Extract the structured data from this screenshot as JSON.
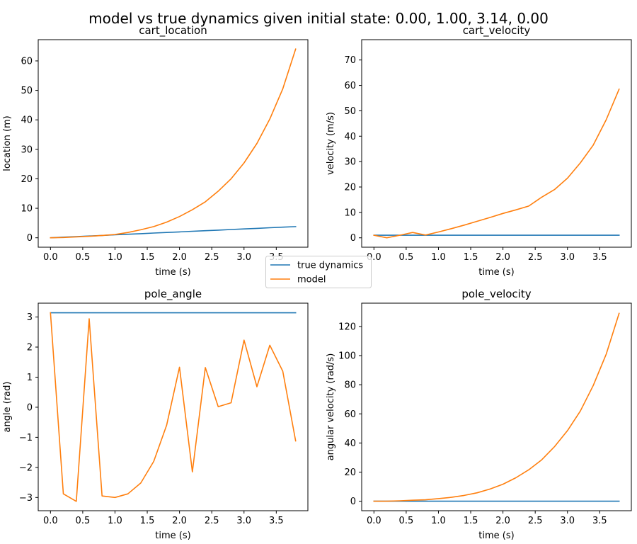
{
  "suptitle": "model vs true dynamics given initial state: 0.00, 1.00, 3.14, 0.00",
  "legend": {
    "placement": "center",
    "entries": [
      {
        "label": "true dynamics",
        "color": "#1f77b4"
      },
      {
        "label": "model",
        "color": "#ff7f0e"
      }
    ]
  },
  "chart_data": [
    {
      "type": "line",
      "title": "cart_location",
      "xlabel": "time (s)",
      "ylabel": "location (m)",
      "xlim": [
        -0.19,
        3.99
      ],
      "ylim": [
        -3.2,
        67.2
      ],
      "xticks": [
        0.0,
        0.5,
        1.0,
        1.5,
        2.0,
        2.5,
        3.0,
        3.5
      ],
      "xtick_labels": [
        "0.0",
        "0.5",
        "1.0",
        "1.5",
        "2.0",
        "2.5",
        "3.0",
        "3.5"
      ],
      "yticks": [
        0,
        10,
        20,
        30,
        40,
        50,
        60
      ],
      "ytick_labels": [
        "0",
        "10",
        "20",
        "30",
        "40",
        "50",
        "60"
      ],
      "x": [
        0.0,
        0.2,
        0.4,
        0.6,
        0.8,
        1.0,
        1.2,
        1.4,
        1.6,
        1.8,
        2.0,
        2.2,
        2.4,
        2.6,
        2.8,
        3.0,
        3.2,
        3.4,
        3.6,
        3.8
      ],
      "series": [
        {
          "name": "true dynamics",
          "color": "#1f77b4",
          "values": [
            0.0,
            0.2,
            0.4,
            0.6,
            0.8,
            1.0,
            1.2,
            1.4,
            1.6,
            1.8,
            2.0,
            2.2,
            2.4,
            2.6,
            2.8,
            3.0,
            3.2,
            3.4,
            3.6,
            3.8
          ]
        },
        {
          "name": "model",
          "color": "#ff7f0e",
          "values": [
            0.0,
            0.1,
            0.3,
            0.5,
            0.8,
            1.1,
            1.8,
            2.7,
            3.8,
            5.3,
            7.2,
            9.5,
            12.2,
            15.8,
            20.0,
            25.4,
            32.0,
            40.3,
            50.5,
            64.0
          ]
        }
      ]
    },
    {
      "type": "line",
      "title": "cart_velocity",
      "xlabel": "time (s)",
      "ylabel": "velocity (m/s)",
      "xlim": [
        -0.19,
        3.99
      ],
      "ylim": [
        -3.7,
        78.0
      ],
      "xticks": [
        0.0,
        0.5,
        1.0,
        1.5,
        2.0,
        2.5,
        3.0,
        3.5
      ],
      "xtick_labels": [
        "0.0",
        "0.5",
        "1.0",
        "1.5",
        "2.0",
        "2.5",
        "3.0",
        "3.5"
      ],
      "yticks": [
        0,
        10,
        20,
        30,
        40,
        50,
        60,
        70
      ],
      "ytick_labels": [
        "0",
        "10",
        "20",
        "30",
        "40",
        "50",
        "60",
        "70"
      ],
      "x": [
        0.0,
        0.2,
        0.4,
        0.6,
        0.8,
        1.0,
        1.2,
        1.4,
        1.6,
        1.8,
        2.0,
        2.2,
        2.4,
        2.6,
        2.8,
        3.0,
        3.2,
        3.4,
        3.6,
        3.8
      ],
      "series": [
        {
          "name": "true dynamics",
          "color": "#1f77b4",
          "values": [
            1.0,
            1.0,
            1.0,
            1.0,
            1.0,
            1.0,
            1.0,
            1.0,
            1.0,
            1.0,
            1.0,
            1.0,
            1.0,
            1.0,
            1.0,
            1.0,
            1.0,
            1.0,
            1.0,
            1.0
          ]
        },
        {
          "name": "model",
          "color": "#ff7f0e",
          "values": [
            1.0,
            0.0,
            1.0,
            2.1,
            1.1,
            2.3,
            3.6,
            5.0,
            6.5,
            8.0,
            9.6,
            11.0,
            12.5,
            16.0,
            19.0,
            23.5,
            29.5,
            36.5,
            46.5,
            58.5
          ]
        }
      ]
    },
    {
      "type": "line",
      "title": "pole_angle",
      "xlabel": "time (s)",
      "ylabel": "angle (rad)",
      "xlim": [
        -0.19,
        3.99
      ],
      "ylim": [
        -3.44,
        3.46
      ],
      "xticks": [
        0.0,
        0.5,
        1.0,
        1.5,
        2.0,
        2.5,
        3.0,
        3.5
      ],
      "xtick_labels": [
        "0.0",
        "0.5",
        "1.0",
        "1.5",
        "2.0",
        "2.5",
        "3.0",
        "3.5"
      ],
      "yticks": [
        -3,
        -2,
        -1,
        0,
        1,
        2,
        3
      ],
      "ytick_labels": [
        "−3",
        "−2",
        "−1",
        "0",
        "1",
        "2",
        "3"
      ],
      "x": [
        0.0,
        0.2,
        0.4,
        0.6,
        0.8,
        1.0,
        1.2,
        1.4,
        1.6,
        1.8,
        2.0,
        2.2,
        2.4,
        2.6,
        2.8,
        3.0,
        3.2,
        3.4,
        3.6,
        3.8
      ],
      "series": [
        {
          "name": "true dynamics",
          "color": "#1f77b4",
          "values": [
            3.14,
            3.14,
            3.14,
            3.14,
            3.14,
            3.14,
            3.14,
            3.14,
            3.14,
            3.14,
            3.14,
            3.14,
            3.14,
            3.14,
            3.14,
            3.14,
            3.14,
            3.14,
            3.14,
            3.14
          ]
        },
        {
          "name": "model",
          "color": "#ff7f0e",
          "values": [
            3.14,
            -2.88,
            -3.13,
            2.94,
            -2.95,
            -3.0,
            -2.88,
            -2.52,
            -1.8,
            -0.6,
            1.33,
            -2.15,
            1.32,
            0.02,
            0.15,
            2.23,
            0.68,
            2.06,
            1.2,
            -1.12
          ]
        }
      ]
    },
    {
      "type": "line",
      "title": "pole_velocity",
      "xlabel": "time (s)",
      "ylabel": "angular velocity (rad/s)",
      "xlim": [
        -0.19,
        3.99
      ],
      "ylim": [
        -6.5,
        136.0
      ],
      "xticks": [
        0.0,
        0.5,
        1.0,
        1.5,
        2.0,
        2.5,
        3.0,
        3.5
      ],
      "xtick_labels": [
        "0.0",
        "0.5",
        "1.0",
        "1.5",
        "2.0",
        "2.5",
        "3.0",
        "3.5"
      ],
      "yticks": [
        0,
        20,
        40,
        60,
        80,
        100,
        120
      ],
      "ytick_labels": [
        "0",
        "20",
        "40",
        "60",
        "80",
        "100",
        "120"
      ],
      "x": [
        0.0,
        0.2,
        0.4,
        0.6,
        0.8,
        1.0,
        1.2,
        1.4,
        1.6,
        1.8,
        2.0,
        2.2,
        2.4,
        2.6,
        2.8,
        3.0,
        3.2,
        3.4,
        3.6,
        3.8
      ],
      "series": [
        {
          "name": "true dynamics",
          "color": "#1f77b4",
          "values": [
            0.0,
            0.0,
            0.0,
            0.0,
            0.0,
            0.0,
            0.0,
            0.0,
            0.0,
            0.0,
            0.0,
            0.0,
            0.0,
            0.0,
            0.0,
            0.0,
            0.0,
            0.0,
            0.0,
            0.0
          ]
        },
        {
          "name": "model",
          "color": "#ff7f0e",
          "values": [
            0.0,
            0.0,
            0.3,
            0.7,
            1.0,
            1.8,
            2.7,
            4.0,
            5.8,
            8.4,
            11.7,
            16.1,
            21.6,
            28.4,
            37.5,
            48.5,
            62.0,
            79.5,
            101.0,
            129.0
          ]
        }
      ]
    }
  ]
}
